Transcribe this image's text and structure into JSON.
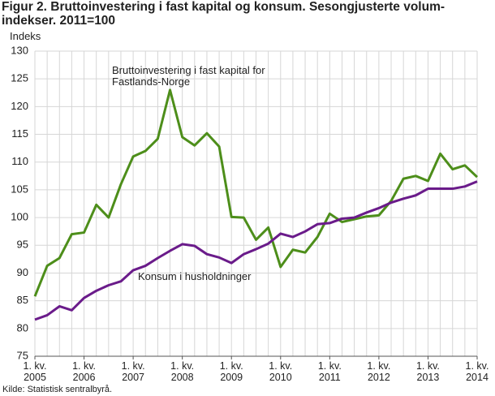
{
  "chart_data": {
    "type": "line",
    "title": "Figur 2. Bruttoinvestering i fast kapital og konsum. Sesongjusterte volum-indekser. 2011=100",
    "y_label": "Indeks",
    "source": "Kilde: Statistisk sentralbyrå.",
    "categories": [
      "1. kv. 2005",
      null,
      null,
      null,
      "1. kv. 2006",
      null,
      null,
      null,
      "1. kv. 2007",
      null,
      null,
      null,
      "1. kv. 2008",
      null,
      null,
      null,
      "1. kv. 2009",
      null,
      null,
      null,
      "1. kv. 2010",
      null,
      null,
      null,
      "1. kv. 2011",
      null,
      null,
      null,
      "1. kv. 2012",
      null,
      null,
      null,
      "1. kv. 2013",
      null,
      null,
      null,
      "1. kv. 2014"
    ],
    "series": [
      {
        "name": "Bruttoinvestering i fast kapital for Fastlands-Norge",
        "color": "#4d8e1a",
        "values": [
          85.8,
          91.3,
          92.7,
          97,
          97.3,
          102.3,
          100,
          106,
          111,
          112,
          114.2,
          123,
          114.5,
          113,
          115.2,
          112.8,
          100.1,
          100,
          96,
          98.2,
          91.1,
          94.2,
          93.7,
          96.5,
          100.7,
          99.2,
          99.7,
          100.2,
          100.4,
          103,
          107,
          107.5,
          106.6,
          111.5,
          108.7,
          109.4,
          107.3
        ]
      },
      {
        "name": "Konsum i husholdninger",
        "color": "#6a1b8a",
        "values": [
          81.6,
          82.4,
          84,
          83.3,
          85.5,
          86.8,
          87.8,
          88.5,
          90.5,
          91.3,
          92.7,
          94,
          95.2,
          94.9,
          93.4,
          92.8,
          91.8,
          93.4,
          94.3,
          95.3,
          97.1,
          96.5,
          97.5,
          98.8,
          99,
          99.8,
          100,
          100.9,
          101.7,
          102.7,
          103.4,
          104,
          105.2,
          105.2,
          105.2,
          105.6,
          106.5
        ]
      }
    ],
    "ylim": [
      75,
      130
    ],
    "yticks": [
      75,
      80,
      85,
      90,
      95,
      100,
      105,
      110,
      115,
      120,
      125,
      130
    ],
    "grid": true
  }
}
